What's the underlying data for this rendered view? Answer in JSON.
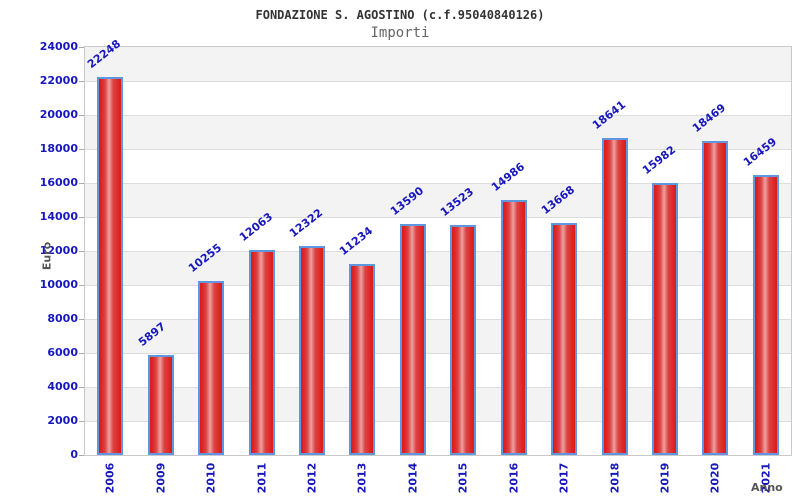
{
  "chart_data": {
    "type": "bar",
    "title": "FONDAZIONE S. AGOSTINO (c.f.95040840126)",
    "subtitle": "Importi",
    "xlabel": "Anno",
    "ylabel": "Euro",
    "categories": [
      "2006",
      "2009",
      "2010",
      "2011",
      "2012",
      "2013",
      "2014",
      "2015",
      "2016",
      "2017",
      "2018",
      "2019",
      "2020",
      "2021"
    ],
    "values": [
      22248,
      5897,
      10255,
      12063,
      12322,
      11234,
      13590,
      13523,
      14986,
      13668,
      18641,
      15982,
      18469,
      16459
    ],
    "ylim": [
      0,
      24000
    ],
    "ytick_step": 2000,
    "legend_position": "none",
    "grid": "horizontal-bands",
    "colors": {
      "label_blue": "#1717bb",
      "bar_edge": "#5e96e0",
      "bar_red_dark": "#d81b1b",
      "bar_red_mid": "#e02525",
      "bar_red_light": "#efa0a0",
      "band_gray": "#f3f3f3",
      "band_white": "#ffffff",
      "gridline": "#dddddd",
      "plot_border": "#c9c9c9",
      "title_color": "#333333",
      "subtitle_color": "#666666",
      "axis_title_color": "#555555"
    }
  }
}
